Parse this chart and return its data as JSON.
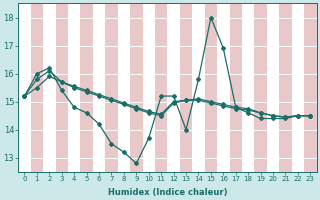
{
  "xlabel": "Humidex (Indice chaleur)",
  "background_color": "#cce8e8",
  "grid_color_white": "#ffffff",
  "grid_color_pink": "#e8c8c8",
  "line_color": "#1a6e6a",
  "xlim": [
    -0.5,
    23.5
  ],
  "ylim": [
    12.5,
    18.5
  ],
  "yticks": [
    13,
    14,
    15,
    16,
    17,
    18
  ],
  "xticks": [
    0,
    1,
    2,
    3,
    4,
    5,
    6,
    7,
    8,
    9,
    10,
    11,
    12,
    13,
    14,
    15,
    16,
    17,
    18,
    19,
    20,
    21,
    22,
    23
  ],
  "series": [
    [
      15.2,
      16.0,
      16.2,
      15.4,
      14.8,
      14.6,
      14.2,
      13.5,
      13.2,
      12.8,
      13.7,
      15.2,
      15.2,
      14.0,
      15.8,
      18.0,
      16.9,
      14.8,
      14.6,
      14.4,
      14.4,
      14.4,
      14.5,
      14.5
    ],
    [
      15.2,
      15.8,
      16.1,
      15.7,
      15.5,
      15.35,
      15.2,
      15.05,
      14.9,
      14.75,
      14.6,
      14.5,
      14.95,
      15.05,
      15.1,
      15.0,
      14.9,
      14.8,
      14.75,
      14.6,
      14.5,
      14.45,
      14.5,
      14.5
    ],
    [
      15.2,
      15.5,
      15.9,
      15.7,
      15.55,
      15.4,
      15.25,
      15.1,
      14.95,
      14.8,
      14.65,
      14.55,
      15.0,
      15.05,
      15.05,
      14.95,
      14.85,
      14.75,
      14.7,
      14.6,
      14.5,
      14.45,
      14.5,
      14.5
    ]
  ],
  "pink_cols": [
    1,
    3,
    5,
    7,
    9,
    11,
    13,
    15,
    17,
    19,
    21,
    23
  ],
  "white_cols": [
    0,
    2,
    4,
    6,
    8,
    10,
    12,
    14,
    16,
    18,
    20,
    22
  ],
  "xlabel_fontsize": 6,
  "tick_fontsize": 5,
  "ytick_fontsize": 6
}
